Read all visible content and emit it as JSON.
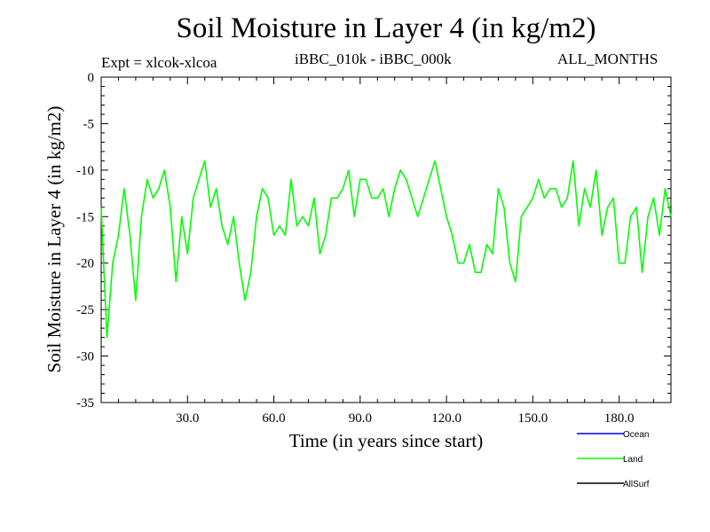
{
  "chart_data": {
    "type": "line",
    "title": "Soil Moisture in Layer 4 (in kg/m2)",
    "subtitle_left": "Expt = xlcok-xlcoa",
    "subtitle_center": "iBBC_010k - iBBC_000k",
    "subtitle_right": "ALL_MONTHS",
    "xlabel": "Time (in years since start)",
    "ylabel": "Soil Moisture in Layer 4 (in kg/m2)",
    "xlim": [
      0,
      198
    ],
    "ylim": [
      -35,
      0
    ],
    "x_ticks": [
      30,
      60,
      90,
      120,
      150,
      180
    ],
    "x_tick_labels": [
      "30.0",
      "60.0",
      "90.0",
      "120.0",
      "150.0",
      "180.0"
    ],
    "y_ticks": [
      0,
      -5,
      -10,
      -15,
      -20,
      -25,
      -30,
      -35
    ],
    "y_tick_labels": [
      "0",
      "-5",
      "-10",
      "-15",
      "-20",
      "-25",
      "-30",
      "-35"
    ],
    "legend": [
      "Ocean",
      "Land",
      "AllSurf"
    ],
    "legend_position": "bottom-right",
    "series": [
      {
        "name": "Ocean",
        "color": "#0000ff",
        "x": [],
        "values": []
      },
      {
        "name": "Land",
        "color": "#00ff00",
        "x": [
          0,
          2,
          4,
          6,
          8,
          10,
          12,
          14,
          16,
          18,
          20,
          22,
          24,
          26,
          28,
          30,
          32,
          34,
          36,
          38,
          40,
          42,
          44,
          46,
          48,
          50,
          52,
          54,
          56,
          58,
          60,
          62,
          64,
          66,
          68,
          70,
          72,
          74,
          76,
          78,
          80,
          82,
          84,
          86,
          88,
          90,
          92,
          94,
          96,
          98,
          100,
          102,
          104,
          106,
          108,
          110,
          112,
          114,
          116,
          118,
          120,
          122,
          124,
          126,
          128,
          130,
          132,
          134,
          136,
          138,
          140,
          142,
          144,
          146,
          148,
          150,
          152,
          154,
          156,
          158,
          160,
          162,
          164,
          166,
          168,
          170,
          172,
          174,
          176,
          178,
          180,
          182,
          184,
          186,
          188,
          190,
          192,
          194,
          196,
          198
        ],
        "values": [
          -14,
          -28,
          -20,
          -17,
          -12,
          -17,
          -24,
          -15,
          -11,
          -13,
          -12,
          -10,
          -14,
          -22,
          -15,
          -19,
          -13,
          -11,
          -9,
          -14,
          -12,
          -16,
          -18,
          -15,
          -20,
          -24,
          -21,
          -15,
          -12,
          -13,
          -17,
          -16,
          -17,
          -11,
          -16,
          -15,
          -16,
          -13,
          -19,
          -17,
          -13,
          -13,
          -12,
          -10,
          -15,
          -11,
          -11,
          -13,
          -13,
          -12,
          -15,
          -12,
          -10,
          -11,
          -13,
          -15,
          -13,
          -11,
          -9,
          -12,
          -15,
          -17,
          -20,
          -20,
          -18,
          -21,
          -21,
          -18,
          -19,
          -12,
          -14,
          -20,
          -22,
          -15,
          -14,
          -13,
          -11,
          -13,
          -12,
          -12,
          -14,
          -13,
          -9,
          -16,
          -12,
          -14,
          -10,
          -17,
          -14,
          -13,
          -20,
          -20,
          -15,
          -14,
          -21,
          -15,
          -13,
          -17,
          -12,
          -15
        ]
      },
      {
        "name": "AllSurf",
        "color": "#000000",
        "x": [],
        "values": []
      }
    ]
  }
}
